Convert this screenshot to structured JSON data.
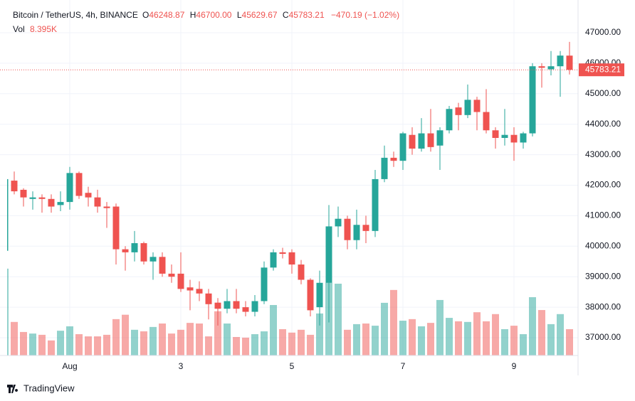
{
  "header": {
    "symbol": "Bitcoin / TetherUS, 4h, BINANCE",
    "o_label": "O",
    "o": "46248.87",
    "h_label": "H",
    "h": "46700.00",
    "l_label": "L",
    "l": "45629.67",
    "c_label": "C",
    "c": "45783.21",
    "change": "−470.19 (−1.02%)",
    "vol_label": "Vol",
    "vol": "8.395K"
  },
  "footer": {
    "brand": "TradingView"
  },
  "chart_data": {
    "type": "candlestick",
    "up_color": "#26a69a",
    "down_color": "#ef5350",
    "grid": true,
    "categories": [
      null,
      null,
      null,
      null,
      null,
      null,
      null,
      "Aug",
      null,
      null,
      null,
      null,
      null,
      null,
      null,
      null,
      null,
      null,
      null,
      "3",
      null,
      null,
      null,
      null,
      null,
      null,
      null,
      null,
      null,
      null,
      null,
      "5",
      null,
      null,
      null,
      null,
      null,
      null,
      null,
      null,
      null,
      null,
      null,
      "7",
      null,
      null,
      null,
      null,
      null,
      null,
      null,
      null,
      null,
      null,
      null,
      "9",
      null,
      null,
      null,
      null,
      null,
      null
    ],
    "open": [
      39850,
      42150,
      41850,
      41550,
      41600,
      41550,
      41350,
      41450,
      42400,
      41750,
      41600,
      41300,
      41300,
      39900,
      39800,
      40100,
      39500,
      39650,
      39100,
      39100,
      38650,
      38600,
      38450,
      38150,
      37950,
      38200,
      38000,
      37850,
      38200,
      39300,
      39800,
      39800,
      39400,
      38900,
      38000,
      38800,
      40650,
      40900,
      40200,
      40700,
      40500,
      42200,
      42900,
      42800,
      43650,
      43200,
      43700,
      43300,
      43800,
      44550,
      44300,
      44800,
      44400,
      43800,
      43550,
      43650,
      43400,
      43700,
      45900,
      45800,
      45900,
      46248.87
    ],
    "high": [
      42250,
      42450,
      41900,
      41800,
      41700,
      41700,
      41800,
      42600,
      42450,
      41950,
      41850,
      41450,
      41400,
      40000,
      40500,
      40150,
      39800,
      39800,
      39400,
      39800,
      38900,
      38850,
      38600,
      38300,
      38600,
      38600,
      38200,
      38400,
      39500,
      39900,
      39950,
      39900,
      39550,
      38950,
      39200,
      41350,
      41300,
      41000,
      41200,
      41000,
      42500,
      43300,
      43100,
      43750,
      43900,
      44200,
      44500,
      43900,
      44600,
      44700,
      45300,
      44900,
      45150,
      43900,
      44500,
      43900,
      43750,
      46000,
      46000,
      46400,
      46400,
      46700
    ],
    "low": [
      39800,
      41700,
      41300,
      41200,
      41100,
      41100,
      41150,
      41200,
      41550,
      41300,
      41100,
      40600,
      39400,
      39200,
      39500,
      39400,
      38900,
      39000,
      38800,
      38500,
      37900,
      38200,
      37600,
      37400,
      37800,
      37800,
      37700,
      37700,
      38100,
      39200,
      39600,
      39100,
      38750,
      37700,
      37400,
      37500,
      40300,
      39900,
      39900,
      40100,
      40300,
      42100,
      42600,
      42500,
      43000,
      43100,
      43100,
      42500,
      43700,
      43800,
      44200,
      43800,
      43700,
      43200,
      43300,
      42800,
      43200,
      43600,
      45200,
      45600,
      44900,
      45629.67
    ],
    "close": [
      42200,
      41800,
      41600,
      41600,
      41550,
      41300,
      41450,
      42400,
      41650,
      41600,
      41300,
      41250,
      39900,
      39800,
      40100,
      39500,
      39650,
      39100,
      39000,
      38600,
      38550,
      38450,
      38100,
      37950,
      38200,
      37950,
      37850,
      38200,
      39300,
      39800,
      39750,
      39400,
      38900,
      37900,
      38800,
      40650,
      40900,
      40200,
      40700,
      40500,
      42200,
      42900,
      42800,
      43700,
      43200,
      43700,
      43250,
      43800,
      44500,
      44300,
      44800,
      44400,
      43800,
      43550,
      43650,
      43400,
      43700,
      45900,
      45850,
      45900,
      46250,
      45783.21
    ],
    "volume": [
      27.7,
      10.7,
      7.5,
      7.0,
      6.6,
      4.8,
      7.9,
      9.3,
      6.8,
      6.1,
      6.1,
      6.6,
      11.6,
      13.0,
      8.2,
      7.7,
      9.1,
      10.2,
      7.0,
      8.2,
      10.4,
      10.2,
      6.1,
      14.1,
      10.2,
      5.9,
      5.7,
      6.8,
      7.7,
      16.1,
      8.4,
      7.3,
      8.2,
      6.6,
      13.4,
      23.2,
      22.9,
      8.2,
      10.0,
      10.2,
      9.5,
      16.8,
      20.9,
      11.1,
      11.6,
      9.3,
      10.4,
      17.7,
      12.0,
      10.9,
      10.7,
      13.8,
      10.9,
      13.2,
      8.4,
      9.5,
      6.8,
      18.6,
      14.5,
      10.0,
      13.2,
      8.395
    ],
    "ylim": [
      36400,
      47600
    ],
    "yticks": [
      {
        "value": 37000,
        "label": "37000.00"
      },
      {
        "value": 38000,
        "label": "38000.00"
      },
      {
        "value": 39000,
        "label": "39000.00"
      },
      {
        "value": 40000,
        "label": "40000.00"
      },
      {
        "value": 41000,
        "label": "41000.00"
      },
      {
        "value": 42000,
        "label": "42000.00"
      },
      {
        "value": 43000,
        "label": "43000.00"
      },
      {
        "value": 44000,
        "label": "44000.00"
      },
      {
        "value": 45000,
        "label": "45000.00"
      },
      {
        "value": 46000,
        "label": "46000.00"
      },
      {
        "value": 47000,
        "label": "47000.00"
      }
    ]
  }
}
